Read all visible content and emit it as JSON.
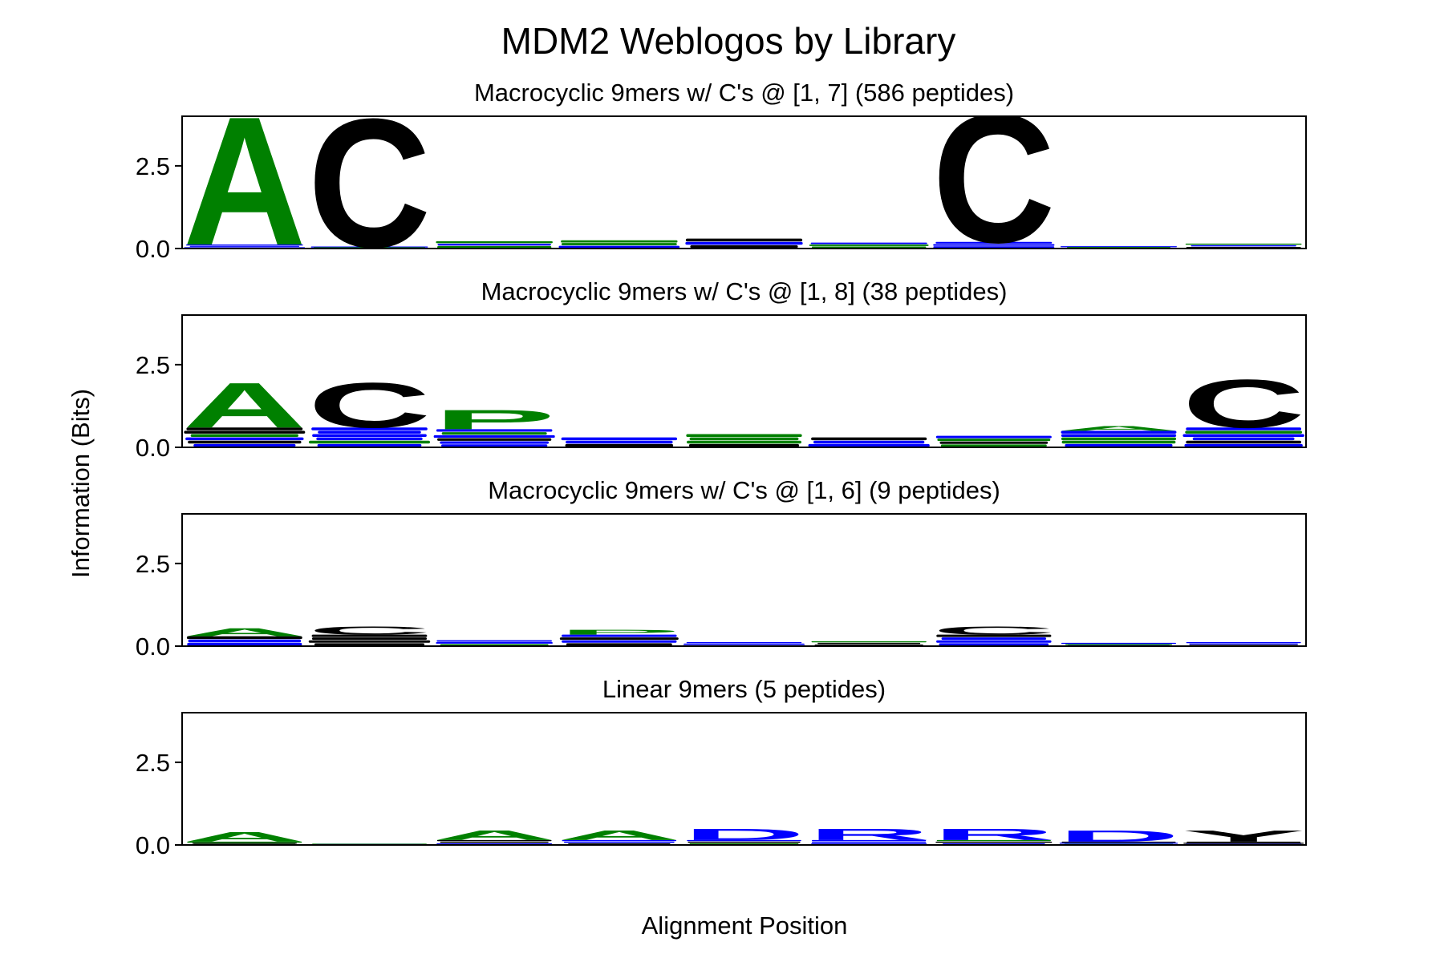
{
  "figure": {
    "title": "MDM2 Weblogos by Library",
    "ylabel": "Information (Bits)",
    "xlabel": "Alignment Position"
  },
  "colors": {
    "A": "#008000",
    "C": "#000000",
    "P": "#008000",
    "G": "#008000",
    "D": "#0000ff",
    "R": "#0000ff",
    "Y": "#000000",
    "stack_green": "#008000",
    "stack_blue": "#0000ff",
    "stack_black": "#000000"
  },
  "chart_data": [
    {
      "type": "logo",
      "title": "Macrocyclic 9mers w/ C's @ [1, 7] (586 peptides)",
      "ylim": [
        0,
        4
      ],
      "yticks": [
        "0.0",
        "2.5"
      ],
      "ytick_values": [
        0,
        2.5
      ],
      "positions": [
        {
          "letter": "A",
          "height": 4.0,
          "base": 0.12
        },
        {
          "letter": "C",
          "height": 4.0,
          "base": 0.06
        },
        {
          "letter": "",
          "height": 0,
          "base": 0.22
        },
        {
          "letter": "",
          "height": 0,
          "base": 0.25
        },
        {
          "letter": "",
          "height": 0,
          "base": 0.3
        },
        {
          "letter": "",
          "height": 0,
          "base": 0.18
        },
        {
          "letter": "C",
          "height": 4.0,
          "base": 0.2
        },
        {
          "letter": "",
          "height": 0,
          "base": 0.07
        },
        {
          "letter": "",
          "height": 0,
          "base": 0.15
        }
      ]
    },
    {
      "type": "logo",
      "title": "Macrocyclic 9mers w/ C's @ [1, 8] (38 peptides)",
      "ylim": [
        0,
        4
      ],
      "yticks": [
        "0.0",
        "2.5"
      ],
      "ytick_values": [
        0,
        2.5
      ],
      "positions": [
        {
          "letter": "A",
          "height": 1.4,
          "base": 0.6
        },
        {
          "letter": "C",
          "height": 1.4,
          "base": 0.6
        },
        {
          "letter": "P",
          "height": 0.6,
          "base": 0.55
        },
        {
          "letter": "",
          "height": 0,
          "base": 0.3
        },
        {
          "letter": "",
          "height": 0,
          "base": 0.4
        },
        {
          "letter": "",
          "height": 0,
          "base": 0.3
        },
        {
          "letter": "",
          "height": 0,
          "base": 0.35
        },
        {
          "letter": "A",
          "height": 0.15,
          "base": 0.5
        },
        {
          "letter": "C",
          "height": 1.5,
          "base": 0.6
        }
      ]
    },
    {
      "type": "logo",
      "title": "Macrocyclic 9mers w/ C's @ [1, 6] (9 peptides)",
      "ylim": [
        0,
        4
      ],
      "yticks": [
        "0.0",
        "2.5"
      ],
      "ytick_values": [
        0,
        2.5
      ],
      "positions": [
        {
          "letter": "A",
          "height": 0.25,
          "base": 0.3
        },
        {
          "letter": "C",
          "height": 0.25,
          "base": 0.35
        },
        {
          "letter": "",
          "height": 0,
          "base": 0.18
        },
        {
          "letter": "P",
          "height": 0.15,
          "base": 0.35
        },
        {
          "letter": "",
          "height": 0,
          "base": 0.12
        },
        {
          "letter": "",
          "height": 0,
          "base": 0.15
        },
        {
          "letter": "C",
          "height": 0.25,
          "base": 0.35
        },
        {
          "letter": "",
          "height": 0,
          "base": 0.1
        },
        {
          "letter": "",
          "height": 0,
          "base": 0.12
        }
      ]
    },
    {
      "type": "logo",
      "title": "Linear 9mers (5 peptides)",
      "ylim": [
        0,
        4
      ],
      "yticks": [
        "0.0",
        "2.5"
      ],
      "ytick_values": [
        0,
        2.5
      ],
      "positions": [
        {
          "letter": "A",
          "height": 0.3,
          "base": 0.1
        },
        {
          "letter": "",
          "height": 0,
          "base": 0.04
        },
        {
          "letter": "A",
          "height": 0.3,
          "base": 0.15
        },
        {
          "letter": "A",
          "height": 0.3,
          "base": 0.15
        },
        {
          "letter": "D",
          "height": 0.35,
          "base": 0.15
        },
        {
          "letter": "R",
          "height": 0.35,
          "base": 0.15
        },
        {
          "letter": "R",
          "height": 0.35,
          "base": 0.15
        },
        {
          "letter": "D",
          "height": 0.35,
          "base": 0.1
        },
        {
          "letter": "Y",
          "height": 0.35,
          "base": 0.1
        }
      ]
    }
  ]
}
